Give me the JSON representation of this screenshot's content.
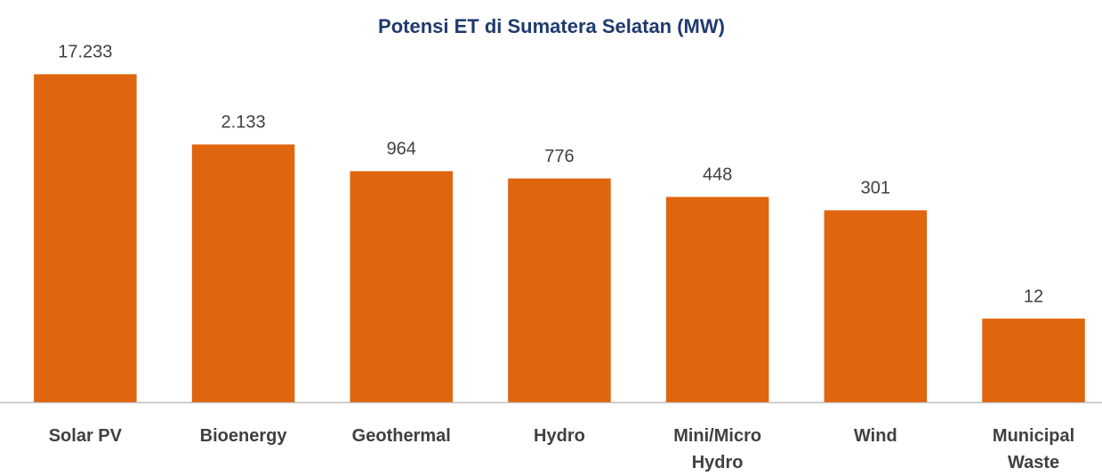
{
  "chart_data": {
    "type": "bar",
    "title": "Potensi ET di Sumatera Selatan (MW)",
    "categories": [
      "Solar PV",
      "Bioenergy",
      "Geothermal",
      "Hydro",
      "Mini/Micro Hydro",
      "Wind",
      "Municipal Waste"
    ],
    "values": [
      17233,
      2133,
      964,
      776,
      448,
      301,
      12
    ],
    "value_labels": [
      "17.233",
      "2.133",
      "964",
      "776",
      "448",
      "301",
      "12"
    ],
    "color": "#e0650f",
    "ylim": [
      1,
      100000
    ],
    "log_scale": true,
    "grid": false
  }
}
